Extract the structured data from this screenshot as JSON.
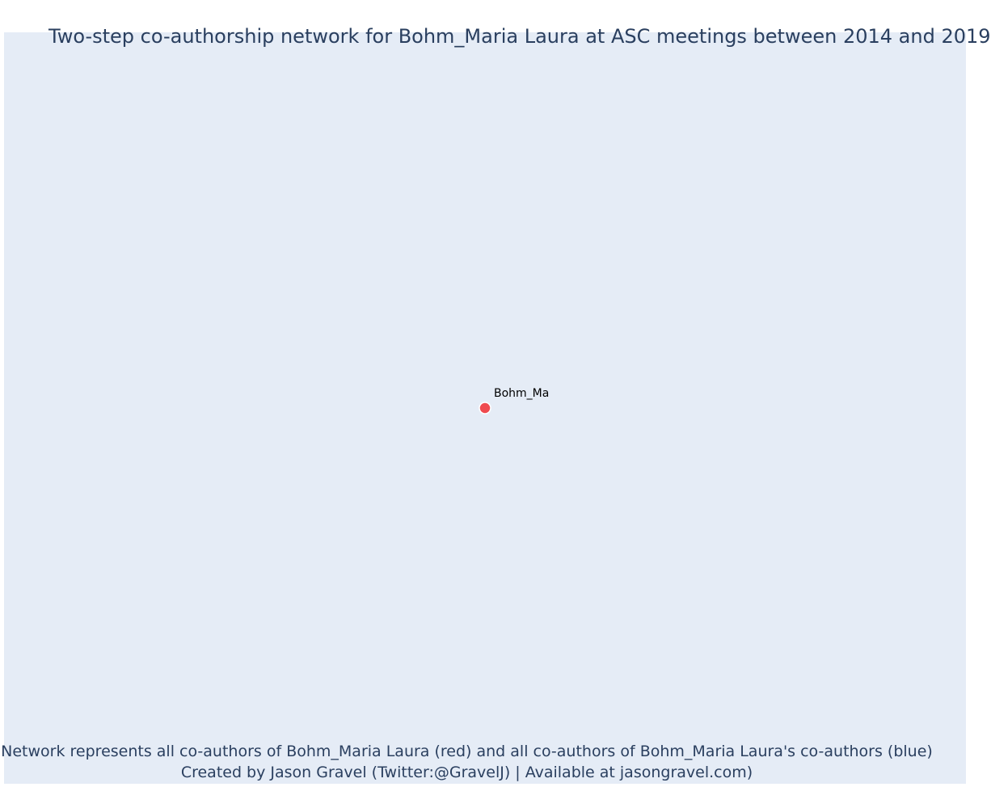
{
  "title": "Two-step co-authorship network for Bohm_Maria Laura at ASC meetings between 2014 and 2019",
  "network": {
    "nodes": [
      {
        "label": "Bohm_Ma",
        "role": "focal",
        "color": "#ef4a4f"
      }
    ],
    "edges": []
  },
  "footer": {
    "line1": "Network represents all co-authors of Bohm_Maria Laura (red) and all co-authors of Bohm_Maria Laura's co-authors (blue)",
    "line2": "Created by Jason Gravel (Twitter:@GravelJ) | Available at jasongravel.com)"
  },
  "colors": {
    "background": "#e5ecf6",
    "text": "#2a3f5f",
    "focal_node": "#ef4a4f"
  }
}
